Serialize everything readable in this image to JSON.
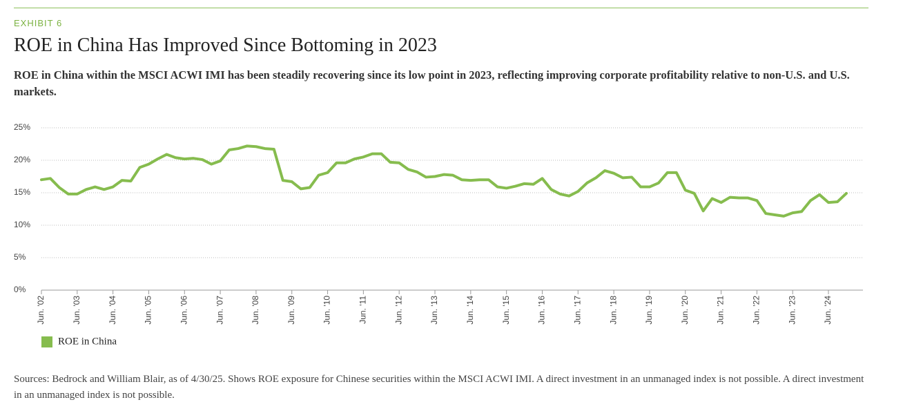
{
  "exhibit": "EXHIBIT 6",
  "chart_data": {
    "type": "line",
    "title": "ROE in China Has Improved Since Bottoming in 2023",
    "subtitle": "ROE in China within the MSCI ACWI IMI has been steadily recovering since its low point in 2023, reflecting improving corporate profitability relative to non-U.S. and U.S. markets.",
    "categories": [
      "Jun. '02",
      null,
      null,
      null,
      "Jun. '03",
      null,
      null,
      null,
      "Jun. '04",
      null,
      null,
      null,
      "Jun. '05",
      null,
      null,
      null,
      "Jun. '06",
      null,
      null,
      null,
      "Jun. '07",
      null,
      null,
      null,
      "Jun. '08",
      null,
      null,
      null,
      "Jun. '09",
      null,
      null,
      null,
      "Jun. '10",
      null,
      null,
      null,
      "Jun. '11",
      null,
      null,
      null,
      "Jun. '12",
      null,
      null,
      null,
      "Jun. '13",
      null,
      null,
      null,
      "Jun. '14",
      null,
      null,
      null,
      "Jun. '15",
      null,
      null,
      null,
      "Jun. '16",
      null,
      null,
      null,
      "Jun. '17",
      null,
      null,
      null,
      "Jun. '18",
      null,
      null,
      null,
      "Jun. '19",
      null,
      null,
      null,
      "Jun. '20",
      null,
      null,
      null,
      "Jun. '21",
      null,
      null,
      null,
      "Jun. '22",
      null,
      null,
      null,
      "Jun. '23",
      null,
      null,
      null,
      "Jun. '24",
      null,
      null
    ],
    "series": [
      {
        "name": "ROE in China",
        "color": "#86bc4e",
        "values": [
          17.0,
          17.2,
          15.8,
          14.8,
          14.8,
          15.5,
          15.9,
          15.5,
          15.9,
          16.9,
          16.8,
          18.9,
          19.4,
          20.2,
          20.9,
          20.4,
          20.2,
          20.3,
          20.1,
          19.4,
          19.9,
          21.6,
          21.8,
          22.2,
          22.1,
          21.8,
          21.7,
          16.9,
          16.7,
          15.6,
          15.8,
          17.7,
          18.1,
          19.6,
          19.6,
          20.2,
          20.5,
          21.0,
          21.0,
          19.7,
          19.6,
          18.6,
          18.2,
          17.4,
          17.5,
          17.8,
          17.7,
          17.0,
          16.9,
          17.0,
          17.0,
          15.9,
          15.7,
          16.0,
          16.4,
          16.3,
          17.2,
          15.5,
          14.8,
          14.5,
          15.2,
          16.5,
          17.3,
          18.4,
          18.0,
          17.3,
          17.4,
          15.9,
          15.9,
          16.5,
          18.1,
          18.1,
          15.4,
          14.9,
          12.2,
          14.1,
          13.5,
          14.3,
          14.2,
          14.2,
          13.8,
          11.8,
          11.6,
          11.4,
          11.9,
          12.1,
          13.8,
          14.7,
          13.5,
          13.6,
          14.9
        ]
      }
    ],
    "ylim": [
      0,
      25
    ],
    "yticks": [
      {
        "value": 0,
        "label": "0%"
      },
      {
        "value": 5,
        "label": "5%"
      },
      {
        "value": 10,
        "label": "10%"
      },
      {
        "value": 15,
        "label": "15%"
      },
      {
        "value": 20,
        "label": "20%"
      },
      {
        "value": 25,
        "label": "25%"
      }
    ],
    "grid": true,
    "source": "Sources: Bedrock and William Blair, as of 4/30/25. Shows ROE exposure for Chinese securities within the MSCI ACWI IMI. A direct investment in an unmanaged index is not possible.  A direct investment in an unmanaged index is not possible."
  }
}
